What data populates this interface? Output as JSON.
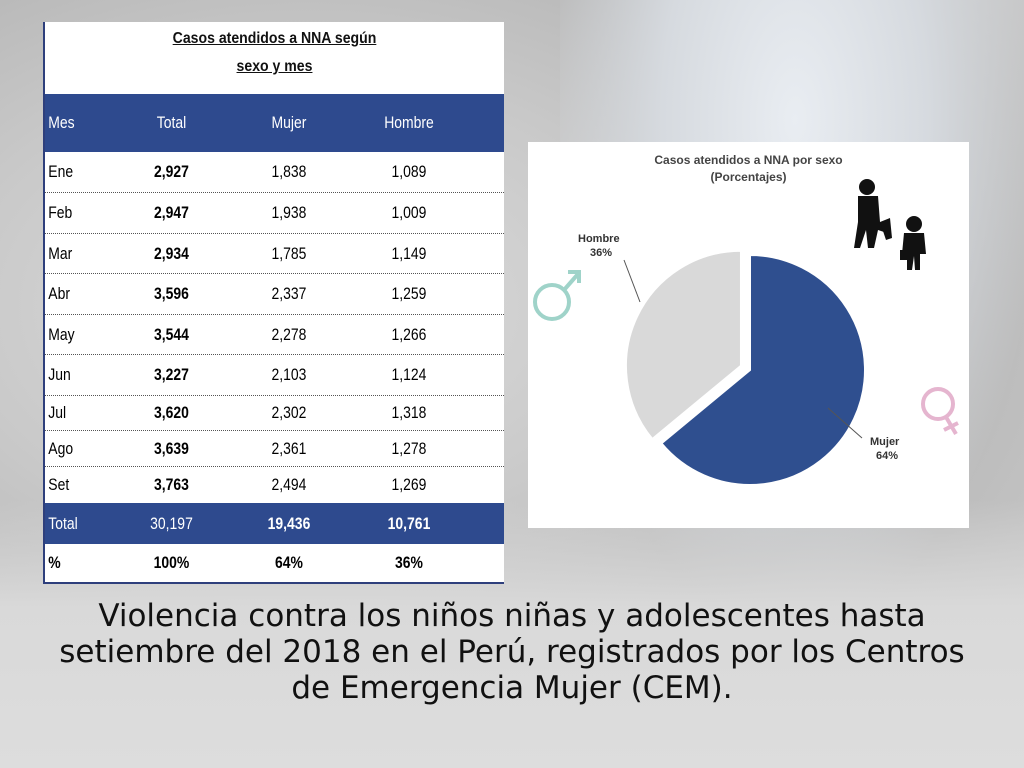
{
  "table": {
    "title_line1": "Casos atendidos a NNA según",
    "title_line2": "sexo y mes",
    "headers": [
      "Mes",
      "Total",
      "Mujer",
      "Hombre"
    ],
    "rows": [
      [
        "Ene",
        "2,927",
        "1,838",
        "1,089"
      ],
      [
        "Feb",
        "2,947",
        "1,938",
        "1,009"
      ],
      [
        "Mar",
        "2,934",
        "1,785",
        "1,149"
      ],
      [
        "Abr",
        "3,596",
        "2,337",
        "1,259"
      ],
      [
        "May",
        "3,544",
        "2,278",
        "1,266"
      ],
      [
        "Jun",
        "3,227",
        "2,103",
        "1,124"
      ],
      [
        "Jul",
        "3,620",
        "2,302",
        "1,318"
      ],
      [
        "Ago",
        "3,639",
        "2,361",
        "1,278"
      ],
      [
        "Set",
        "3,763",
        "2,494",
        "1,269"
      ]
    ],
    "total": [
      "Total",
      "30,197",
      "19,436",
      "10,761"
    ],
    "percent": [
      "%",
      "100%",
      "64%",
      "36%"
    ]
  },
  "chart_data": {
    "type": "pie",
    "title": "Casos atendidos a NNA por sexo",
    "subtitle": "(Porcentajes)",
    "slices": [
      {
        "name": "Mujer",
        "value": 64,
        "label": "64%",
        "color": "#2f4f8f"
      },
      {
        "name": "Hombre",
        "value": 36,
        "label": "36%",
        "color": "#d9d9d9"
      }
    ]
  },
  "icons": {
    "male": "male-symbol-icon",
    "female": "female-symbol-icon",
    "children": "children-silhouette-icon"
  },
  "caption": "Violencia contra los niños niñas y adolescentes hasta setiembre del 2018 en el Perú, registrados por los Centros de Emergencia Mujer (CEM)."
}
